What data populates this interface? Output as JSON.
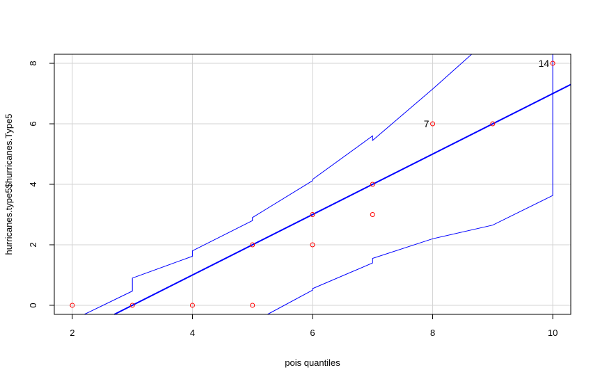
{
  "chart_data": {
    "type": "scatter",
    "xlabel": "pois quantiles",
    "ylabel": "hurricanes.type5$hurricanes.Type5",
    "xlim": [
      1.7,
      10.3
    ],
    "ylim": [
      -0.3,
      8.3
    ],
    "x_ticks": [
      "2",
      "4",
      "6",
      "8",
      "10"
    ],
    "y_ticks": [
      "0",
      "2",
      "4",
      "6",
      "8"
    ],
    "grid": true,
    "colors": {
      "points": "#ff0000",
      "reference_line": "#0000ff",
      "envelope": "#0000ff",
      "grid": "#d3d3d3"
    },
    "points": [
      {
        "x": 2,
        "y": 0
      },
      {
        "x": 3,
        "y": 0
      },
      {
        "x": 4,
        "y": 0
      },
      {
        "x": 5,
        "y": 0
      },
      {
        "x": 5,
        "y": 2
      },
      {
        "x": 6,
        "y": 2
      },
      {
        "x": 6,
        "y": 3
      },
      {
        "x": 7,
        "y": 3
      },
      {
        "x": 7,
        "y": 4
      },
      {
        "x": 8,
        "y": 6
      },
      {
        "x": 9,
        "y": 6
      },
      {
        "x": 10,
        "y": 8
      }
    ],
    "labeled_points": [
      {
        "label": "7",
        "x": 8,
        "y": 6
      },
      {
        "label": "14",
        "x": 10,
        "y": 8
      }
    ],
    "reference_line": {
      "intercept": -3.0,
      "slope": 1.0
    },
    "upper_envelope": [
      [
        2.2,
        -0.3
      ],
      [
        3,
        0.47
      ],
      [
        3,
        0.9
      ],
      [
        4,
        1.62
      ],
      [
        4,
        1.8
      ],
      [
        5,
        2.8
      ],
      [
        5,
        2.9
      ],
      [
        6,
        4.12
      ],
      [
        6,
        4.16
      ],
      [
        7,
        5.6
      ],
      [
        7,
        5.45
      ],
      [
        8,
        7.15
      ],
      [
        8.65,
        8.3
      ]
    ],
    "lower_envelope": [
      [
        5.25,
        -0.3
      ],
      [
        6,
        0.5
      ],
      [
        6,
        0.55
      ],
      [
        7,
        1.4
      ],
      [
        7,
        1.55
      ],
      [
        8,
        2.2
      ],
      [
        9,
        2.65
      ],
      [
        10,
        3.63
      ],
      [
        10,
        8.3
      ]
    ]
  }
}
